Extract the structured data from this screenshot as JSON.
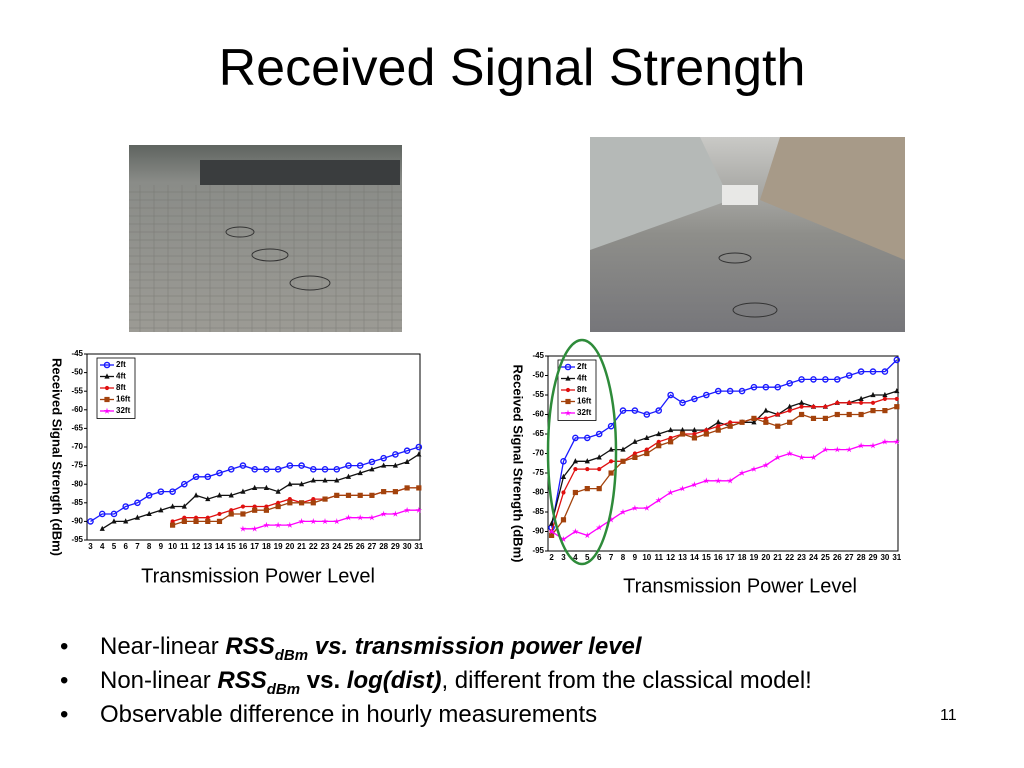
{
  "title": "Received Signal Strength",
  "chart_data": [
    {
      "type": "line",
      "ylabel": "Received Signal Strength (dBm)",
      "xlabel": "Transmission Power Level",
      "categories": [
        "3",
        "4",
        "5",
        "6",
        "7",
        "8",
        "9",
        "10",
        "11",
        "12",
        "13",
        "14",
        "15",
        "16",
        "17",
        "18",
        "19",
        "20",
        "21",
        "22",
        "23",
        "24",
        "25",
        "26",
        "27",
        "28",
        "29",
        "30",
        "31"
      ],
      "ylim": [
        -95,
        -45
      ],
      "yticks": [
        -95,
        -90,
        -85,
        -80,
        -75,
        -70,
        -65,
        -60,
        -55,
        -50,
        -45
      ],
      "legend": "upper-left",
      "series": [
        {
          "name": "2ft",
          "color": "#1a1aff",
          "marker": "circle",
          "values": [
            -90,
            -88,
            -88,
            -86,
            -85,
            -83,
            -82,
            -82,
            -80,
            -78,
            -78,
            -77,
            -76,
            -75,
            -76,
            -76,
            -76,
            -75,
            -75,
            -76,
            -76,
            -76,
            -75,
            -75,
            -74,
            -73,
            -72,
            -71,
            -70
          ]
        },
        {
          "name": "4ft",
          "color": "#111111",
          "marker": "triangle",
          "values": [
            null,
            -92,
            -90,
            -90,
            -89,
            -88,
            -87,
            -86,
            -86,
            -83,
            -84,
            -83,
            -83,
            -82,
            -81,
            -81,
            -82,
            -80,
            -80,
            -79,
            -79,
            -79,
            -78,
            -77,
            -76,
            -75,
            -75,
            -74,
            -72
          ]
        },
        {
          "name": "8ft",
          "color": "#e01010",
          "marker": "dot",
          "values": [
            null,
            null,
            null,
            null,
            null,
            null,
            null,
            -90,
            -89,
            -89,
            -89,
            -88,
            -87,
            -86,
            -86,
            -86,
            -85,
            -84,
            -85,
            -84,
            -84,
            -83,
            -83,
            -83,
            -83,
            -82,
            -82,
            -81,
            -81
          ]
        },
        {
          "name": "16ft",
          "color": "#a3420c",
          "marker": "square",
          "values": [
            null,
            null,
            null,
            null,
            null,
            null,
            null,
            -91,
            -90,
            -90,
            -90,
            -90,
            -88,
            -88,
            -87,
            -87,
            -86,
            -85,
            -85,
            -85,
            -84,
            -83,
            -83,
            -83,
            -83,
            -82,
            -82,
            -81,
            -81
          ]
        },
        {
          "name": "32ft",
          "color": "#ff00ff",
          "marker": "star",
          "values": [
            null,
            null,
            null,
            null,
            null,
            null,
            null,
            null,
            null,
            null,
            null,
            null,
            null,
            -92,
            -92,
            -91,
            -91,
            -91,
            -90,
            -90,
            -90,
            -90,
            -89,
            -89,
            -89,
            -88,
            -88,
            -87,
            -87
          ]
        }
      ]
    },
    {
      "type": "line",
      "ylabel": "Received Signal Strength (dBm)",
      "xlabel": "Transmission Power Level",
      "categories": [
        "2",
        "3",
        "4",
        "5",
        "6",
        "7",
        "8",
        "9",
        "10",
        "11",
        "12",
        "13",
        "14",
        "15",
        "16",
        "17",
        "18",
        "19",
        "20",
        "21",
        "22",
        "23",
        "24",
        "25",
        "26",
        "27",
        "28",
        "29",
        "30",
        "31"
      ],
      "ylim": [
        -95,
        -45
      ],
      "yticks": [
        -95,
        -90,
        -85,
        -80,
        -75,
        -70,
        -65,
        -60,
        -55,
        -50,
        -45
      ],
      "legend": "upper-left",
      "series": [
        {
          "name": "2ft",
          "color": "#1a1aff",
          "marker": "circle",
          "values": [
            -89,
            -72,
            -66,
            -66,
            -65,
            -63,
            -59,
            -59,
            -60,
            -59,
            -55,
            -57,
            -56,
            -55,
            -54,
            -54,
            -54,
            -53,
            -53,
            -53,
            -52,
            -51,
            -51,
            -51,
            -51,
            -50,
            -49,
            -49,
            -49,
            -46
          ]
        },
        {
          "name": "4ft",
          "color": "#111111",
          "marker": "triangle",
          "values": [
            -88,
            -76,
            -72,
            -72,
            -71,
            -69,
            -69,
            -67,
            -66,
            -65,
            -64,
            -64,
            -64,
            -64,
            -62,
            -63,
            -62,
            -62,
            -59,
            -60,
            -58,
            -57,
            -58,
            -58,
            -57,
            -57,
            -56,
            -55,
            -55,
            -54
          ]
        },
        {
          "name": "8ft",
          "color": "#e01010",
          "marker": "dot",
          "values": [
            -90,
            -80,
            -74,
            -74,
            -74,
            -72,
            -72,
            -70,
            -69,
            -67,
            -66,
            -65,
            -65,
            -64,
            -63,
            -62,
            -62,
            -61,
            -61,
            -60,
            -59,
            -58,
            -58,
            -58,
            -57,
            -57,
            -57,
            -57,
            -56,
            -56
          ]
        },
        {
          "name": "16ft",
          "color": "#a3420c",
          "marker": "square",
          "values": [
            -91,
            -87,
            -80,
            -79,
            -79,
            -75,
            -72,
            -71,
            -70,
            -68,
            -67,
            -65,
            -66,
            -65,
            -64,
            -63,
            -62,
            -61,
            -62,
            -63,
            -62,
            -60,
            -61,
            -61,
            -60,
            -60,
            -60,
            -59,
            -59,
            -58
          ]
        },
        {
          "name": "32ft",
          "color": "#ff00ff",
          "marker": "star",
          "values": [
            -90,
            -92,
            -90,
            -91,
            -89,
            -87,
            -85,
            -84,
            -84,
            -82,
            -80,
            -79,
            -78,
            -77,
            -77,
            -77,
            -75,
            -74,
            -73,
            -71,
            -70,
            -71,
            -71,
            -69,
            -69,
            -69,
            -68,
            -68,
            -67,
            -67
          ]
        }
      ]
    }
  ],
  "bullets": [
    [
      "Near-linear ",
      "RSS",
      "dBm",
      " vs. transmission power level"
    ],
    [
      "Non-linear ",
      "RSS",
      "dBm",
      " vs. ",
      "log(dist)",
      ", different from the classical model!"
    ],
    [
      "Observable difference in hourly measurements"
    ]
  ],
  "page_number": "11"
}
